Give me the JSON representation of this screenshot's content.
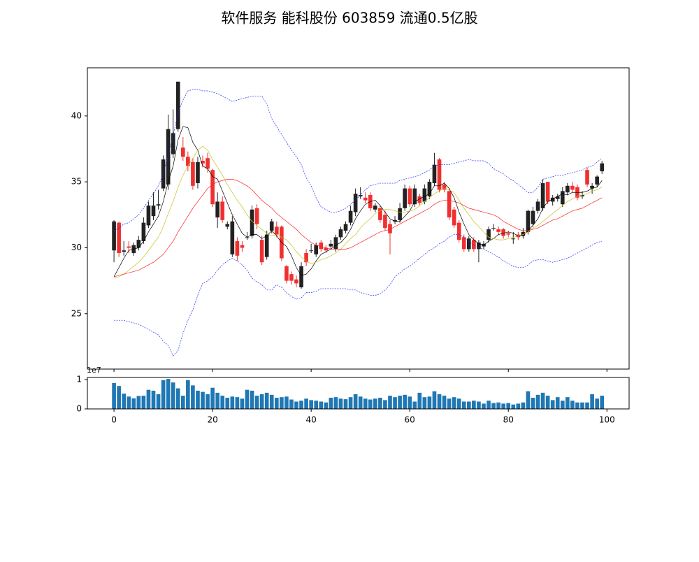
{
  "chart_data": [
    {
      "type": "candlestick",
      "title": "软件服务 能科股份 603859 流通0.5亿股",
      "x": [
        0,
        1,
        2,
        3,
        4,
        5,
        6,
        7,
        8,
        9,
        10,
        11,
        12,
        13,
        14,
        15,
        16,
        17,
        18,
        19,
        20,
        21,
        22,
        23,
        24,
        25,
        26,
        27,
        28,
        29,
        30,
        31,
        32,
        33,
        34,
        35,
        36,
        37,
        38,
        39,
        40,
        41,
        42,
        43,
        44,
        45,
        46,
        47,
        48,
        49,
        50,
        51,
        52,
        53,
        54,
        55,
        56,
        57,
        58,
        59,
        60,
        61,
        62,
        63,
        64,
        65,
        66,
        67,
        68,
        69,
        70,
        71,
        72,
        73,
        74,
        75,
        76,
        77,
        78,
        79,
        80,
        81,
        82,
        83,
        84,
        85,
        86,
        87,
        88,
        89,
        90,
        91,
        92,
        93,
        94,
        95,
        96,
        97,
        98,
        99
      ],
      "open": [
        29.8,
        31.9,
        29.7,
        30.1,
        29.6,
        30.0,
        30.5,
        31.7,
        32.4,
        33.2,
        34.5,
        34.8,
        37.1,
        39.0,
        37.6,
        36.9,
        36.5,
        34.9,
        36.6,
        36.8,
        35.9,
        32.3,
        33.5,
        31.6,
        29.5,
        30.5,
        30.2,
        30.8,
        30.9,
        33.0,
        30.6,
        29.3,
        31.3,
        31.6,
        31.6,
        28.6,
        28.0,
        27.6,
        27.0,
        29.6,
        29.8,
        29.5,
        30.4,
        30.0,
        30.1,
        29.9,
        30.8,
        31.3,
        31.9,
        32.7,
        33.9,
        33.8,
        34.0,
        32.9,
        33.0,
        32.5,
        31.8,
        32.0,
        32.1,
        33.0,
        34.5,
        33.3,
        33.9,
        33.5,
        33.9,
        34.9,
        36.7,
        34.8,
        34.3,
        32.9,
        31.9,
        30.8,
        29.9,
        30.6,
        29.9,
        30.1,
        30.6,
        31.5,
        31.4,
        31.4,
        31.1,
        30.7,
        31.0,
        30.9,
        31.2,
        31.8,
        32.8,
        33.0,
        35.0,
        33.5,
        33.7,
        33.3,
        34.2,
        34.7,
        34.6,
        33.9,
        35.9,
        34.5,
        34.8,
        35.8
      ],
      "high": [
        32.1,
        32.0,
        30.5,
        30.5,
        30.4,
        30.9,
        32.3,
        33.5,
        34.2,
        34.4,
        37.0,
        40.1,
        40.5,
        42.6,
        38.4,
        37.3,
        36.8,
        36.9,
        37.0,
        37.2,
        36.0,
        34.2,
        33.9,
        32.0,
        32.4,
        30.8,
        30.5,
        31.2,
        33.2,
        33.3,
        30.9,
        31.3,
        32.2,
        32.0,
        31.7,
        28.7,
        28.2,
        27.9,
        28.9,
        29.9,
        30.3,
        30.4,
        30.6,
        30.2,
        30.6,
        31.0,
        31.6,
        32.0,
        33.2,
        34.5,
        34.6,
        34.2,
        34.2,
        33.4,
        33.2,
        32.8,
        32.1,
        32.4,
        33.4,
        34.8,
        34.7,
        34.8,
        34.1,
        34.8,
        35.2,
        37.2,
        36.8,
        35.0,
        34.5,
        33.1,
        32.1,
        31.0,
        30.9,
        30.8,
        30.6,
        30.5,
        31.6,
        31.8,
        31.6,
        31.5,
        31.3,
        31.2,
        31.2,
        31.5,
        32.9,
        33.1,
        33.7,
        35.2,
        35.0,
        34.0,
        34.1,
        34.6,
        34.9,
        35.0,
        34.8,
        34.3,
        36.1,
        34.9,
        35.5,
        36.6
      ],
      "low": [
        28.9,
        29.3,
        29.4,
        29.6,
        29.4,
        29.8,
        30.3,
        31.5,
        32.1,
        32.9,
        34.3,
        34.4,
        36.8,
        38.8,
        36.6,
        35.8,
        34.4,
        34.5,
        36.1,
        35.7,
        33.1,
        31.5,
        31.9,
        31.4,
        29.3,
        29.0,
        29.7,
        30.6,
        30.7,
        31.4,
        28.7,
        29.1,
        31.1,
        30.8,
        29.0,
        27.3,
        27.2,
        27.0,
        26.9,
        28.6,
        29.6,
        29.3,
        29.7,
        29.6,
        29.9,
        29.7,
        30.6,
        31.1,
        31.7,
        32.4,
        33.7,
        33.4,
        32.8,
        32.7,
        31.9,
        31.3,
        29.5,
        31.8,
        31.9,
        32.8,
        33.1,
        33.1,
        33.2,
        33.3,
        33.7,
        34.7,
        34.2,
        34.2,
        32.1,
        31.5,
        30.4,
        29.7,
        29.7,
        29.7,
        28.9,
        29.9,
        30.4,
        31.3,
        31.0,
        30.7,
        30.8,
        30.3,
        30.6,
        30.7,
        31.0,
        31.6,
        32.6,
        32.8,
        33.3,
        33.2,
        33.5,
        33.1,
        34.0,
        34.2,
        33.6,
        33.7,
        34.6,
        34.1,
        34.6,
        35.6
      ],
      "close": [
        32.0,
        29.6,
        29.8,
        30.0,
        30.2,
        30.6,
        31.9,
        33.2,
        33.2,
        33.3,
        36.7,
        39.0,
        38.7,
        42.6,
        36.9,
        36.2,
        34.7,
        36.5,
        36.4,
        36.0,
        33.3,
        33.5,
        32.1,
        31.8,
        32.0,
        29.4,
        30.0,
        30.8,
        32.9,
        31.8,
        28.9,
        31.0,
        32.0,
        31.0,
        29.2,
        27.5,
        27.5,
        27.3,
        28.6,
        28.9,
        29.8,
        30.2,
        29.9,
        29.8,
        30.3,
        30.8,
        31.4,
        31.8,
        32.8,
        34.1,
        34.0,
        33.6,
        33.0,
        33.2,
        32.1,
        31.5,
        31.1,
        32.1,
        33.0,
        34.5,
        33.3,
        34.5,
        33.4,
        34.5,
        35.0,
        36.3,
        34.4,
        34.4,
        32.3,
        31.7,
        30.6,
        29.9,
        30.7,
        29.9,
        30.4,
        30.3,
        31.4,
        31.5,
        31.2,
        30.9,
        31.0,
        30.7,
        30.8,
        31.2,
        32.8,
        32.8,
        33.5,
        34.9,
        33.5,
        33.8,
        33.9,
        34.3,
        34.7,
        34.4,
        33.8,
        34.0,
        34.8,
        34.7,
        35.4,
        36.4
      ],
      "up_color": "#222222",
      "down_color": "#f03030",
      "lines": [
        {
          "color": "#000000",
          "dashed": false,
          "values": [
            27.8,
            28.5,
            29.2,
            29.8,
            29.9,
            30.0,
            30.5,
            31.2,
            31.8,
            32.4,
            33.5,
            35.0,
            36.2,
            38.2,
            39.2,
            39.1,
            38.0,
            37.4,
            36.2,
            36.0,
            35.4,
            35.2,
            34.3,
            33.4,
            32.5,
            31.8,
            31.1,
            30.8,
            31.0,
            31.0,
            30.7,
            30.9,
            31.3,
            30.9,
            30.4,
            30.1,
            29.4,
            28.5,
            27.9,
            28.0,
            28.4,
            29.0,
            29.5,
            29.7,
            29.9,
            30.2,
            30.4,
            30.8,
            31.4,
            32.2,
            32.8,
            33.3,
            33.5,
            33.6,
            33.2,
            32.7,
            32.2,
            32.0,
            32.0,
            32.4,
            32.8,
            33.5,
            33.7,
            33.9,
            34.1,
            34.7,
            34.7,
            34.9,
            34.5,
            33.8,
            32.7,
            31.8,
            31.0,
            30.6,
            30.3,
            30.2,
            30.5,
            30.7,
            31.0,
            31.1,
            31.2,
            31.1,
            30.9,
            30.9,
            31.3,
            31.7,
            32.2,
            33.0,
            33.5,
            33.7,
            33.9,
            34.1,
            34.0,
            34.2,
            34.2,
            34.2,
            34.3,
            34.5,
            34.6,
            35.1
          ]
        },
        {
          "color": "#c8c020",
          "dashed": false,
          "values": [
            27.7,
            27.8,
            28.0,
            28.3,
            28.6,
            28.9,
            29.3,
            29.8,
            30.3,
            30.8,
            31.6,
            32.6,
            33.5,
            34.6,
            35.5,
            36.2,
            36.8,
            37.4,
            37.7,
            37.4,
            36.7,
            36.1,
            35.5,
            34.8,
            34.2,
            33.6,
            33.1,
            32.5,
            32.0,
            31.7,
            31.4,
            31.1,
            30.9,
            31.0,
            30.8,
            30.6,
            30.2,
            29.7,
            29.3,
            29.0,
            28.8,
            28.9,
            29.1,
            29.2,
            29.4,
            29.6,
            29.9,
            30.3,
            30.7,
            31.0,
            31.5,
            31.9,
            32.2,
            32.6,
            32.8,
            32.9,
            32.9,
            32.8,
            32.7,
            32.7,
            32.8,
            32.9,
            33.2,
            33.5,
            33.8,
            34.1,
            34.3,
            34.5,
            34.4,
            34.2,
            33.6,
            33.0,
            32.5,
            32.0,
            31.6,
            31.2,
            30.8,
            30.7,
            30.6,
            30.6,
            30.7,
            30.8,
            30.9,
            31.0,
            31.2,
            31.5,
            31.7,
            32.0,
            32.3,
            32.6,
            32.9,
            33.2,
            33.5,
            33.7,
            33.9,
            34.0,
            34.1,
            34.3,
            34.4,
            34.6
          ]
        },
        {
          "color": "#ff2020",
          "dashed": false,
          "values": [
            27.8,
            27.9,
            28.0,
            28.1,
            28.2,
            28.3,
            28.5,
            28.7,
            28.9,
            29.2,
            29.5,
            30.0,
            30.5,
            31.2,
            31.8,
            32.4,
            33.0,
            33.5,
            34.0,
            34.5,
            34.8,
            35.0,
            35.1,
            35.2,
            35.2,
            35.1,
            34.9,
            34.7,
            34.4,
            34.0,
            33.6,
            33.3,
            33.0,
            32.6,
            32.3,
            32.0,
            31.7,
            31.4,
            31.0,
            30.7,
            30.4,
            30.2,
            30.1,
            30.0,
            29.9,
            29.9,
            29.9,
            29.9,
            30.0,
            30.2,
            30.4,
            30.6,
            30.8,
            31.0,
            31.2,
            31.3,
            31.4,
            31.6,
            31.8,
            32.0,
            32.2,
            32.4,
            32.6,
            32.8,
            33.0,
            33.3,
            33.5,
            33.6,
            33.6,
            33.5,
            33.4,
            33.2,
            33.0,
            32.9,
            32.8,
            32.7,
            32.6,
            32.5,
            32.3,
            32.0,
            31.8,
            31.6,
            31.4,
            31.3,
            31.3,
            31.4,
            31.5,
            31.7,
            31.9,
            32.1,
            32.2,
            32.4,
            32.6,
            32.8,
            32.9,
            33.0,
            33.2,
            33.4,
            33.6,
            33.8
          ]
        },
        {
          "color": "#2030ff",
          "dashed": true,
          "values": [
            31.3,
            31.5,
            31.8,
            31.9,
            32.2,
            32.5,
            33.0,
            33.6,
            34.1,
            34.7,
            35.6,
            37.0,
            38.5,
            40.3,
            41.2,
            41.9,
            42.0,
            42.0,
            41.9,
            41.9,
            41.8,
            41.7,
            41.5,
            41.3,
            41.1,
            41.2,
            41.3,
            41.4,
            41.5,
            41.5,
            41.5,
            40.9,
            39.8,
            39.2,
            38.6,
            38.0,
            37.4,
            36.9,
            36.3,
            35.3,
            34.7,
            33.8,
            33.1,
            32.9,
            32.7,
            32.7,
            32.8,
            33.0,
            33.3,
            33.6,
            34.0,
            34.4,
            34.7,
            34.8,
            34.9,
            34.9,
            34.9,
            34.9,
            35.1,
            35.2,
            35.3,
            35.4,
            35.5,
            35.7,
            35.9,
            36.2,
            36.3,
            36.3,
            36.3,
            36.4,
            36.5,
            36.6,
            36.7,
            36.6,
            36.6,
            36.6,
            36.4,
            36.0,
            35.8,
            35.6,
            35.3,
            35.1,
            34.8,
            34.5,
            34.2,
            34.2,
            34.6,
            35.2,
            35.3,
            35.4,
            35.5,
            35.5,
            35.6,
            35.7,
            35.8,
            35.9,
            36.1,
            36.2,
            36.5,
            36.8
          ]
        },
        {
          "color": "#2030ff",
          "dashed": true,
          "values": [
            24.5,
            24.5,
            24.5,
            24.4,
            24.3,
            24.2,
            24.0,
            23.8,
            23.6,
            23.4,
            22.9,
            22.6,
            21.8,
            22.2,
            23.5,
            24.5,
            25.3,
            26.4,
            27.3,
            27.5,
            27.8,
            28.3,
            28.7,
            29.0,
            29.2,
            29.0,
            28.7,
            28.3,
            27.7,
            27.4,
            27.2,
            26.8,
            26.8,
            27.2,
            27.0,
            26.6,
            26.3,
            26.1,
            26.2,
            26.6,
            26.6,
            26.7,
            26.9,
            26.9,
            26.9,
            26.9,
            26.9,
            26.9,
            26.8,
            26.8,
            26.6,
            26.5,
            26.4,
            26.4,
            26.5,
            26.8,
            27.2,
            27.8,
            28.1,
            28.4,
            28.6,
            28.9,
            29.2,
            29.5,
            29.8,
            30.0,
            30.3,
            30.5,
            30.8,
            31.0,
            31.0,
            30.8,
            30.5,
            30.2,
            30.0,
            29.9,
            29.7,
            29.5,
            29.3,
            29.0,
            28.8,
            28.6,
            28.5,
            28.5,
            28.7,
            29.0,
            29.1,
            29.1,
            29.0,
            28.9,
            29.0,
            29.1,
            29.2,
            29.4,
            29.6,
            29.8,
            30.0,
            30.2,
            30.4,
            30.5
          ]
        }
      ],
      "xlim": [
        -5.4,
        104.5
      ],
      "ylim": [
        20.8,
        43.65
      ],
      "yticks": [
        25,
        30,
        35,
        40
      ]
    },
    {
      "type": "bar",
      "color": "#1f77b4",
      "values": [
        8800000,
        7800000,
        5200000,
        4200000,
        3600000,
        4400000,
        4500000,
        6500000,
        6200000,
        5000000,
        9800000,
        10200000,
        9000000,
        7000000,
        4500000,
        9800000,
        8000000,
        6200000,
        5800000,
        5000000,
        7200000,
        5500000,
        4500000,
        3800000,
        4200000,
        4000000,
        3500000,
        6500000,
        6200000,
        4500000,
        5000000,
        5500000,
        4800000,
        3800000,
        4000000,
        4200000,
        3200000,
        2500000,
        2800000,
        3500000,
        3000000,
        2800000,
        2500000,
        2200000,
        3800000,
        4000000,
        3500000,
        3300000,
        4000000,
        5000000,
        4200000,
        3500000,
        3200000,
        3500000,
        3800000,
        3000000,
        4500000,
        4000000,
        4500000,
        4800000,
        4200000,
        2500000,
        5500000,
        4000000,
        4200000,
        6000000,
        5000000,
        4500000,
        3500000,
        4000000,
        3500000,
        2500000,
        2500000,
        2800000,
        2500000,
        1800000,
        2800000,
        2000000,
        2200000,
        1800000,
        2000000,
        1500000,
        1800000,
        2200000,
        6000000,
        3800000,
        4800000,
        5500000,
        4500000,
        3000000,
        4000000,
        2800000,
        4000000,
        2800000,
        2200000,
        2200000,
        2200000,
        5000000,
        3500000,
        4500000
      ],
      "xlim": [
        -5.4,
        104.5
      ],
      "ylim": [
        0,
        10700000
      ],
      "xticks": [
        0,
        20,
        40,
        60,
        80,
        100
      ],
      "yticks": [
        0,
        {
          "value": 10000000,
          "label": "1"
        }
      ],
      "offset_label": "1e7"
    }
  ]
}
